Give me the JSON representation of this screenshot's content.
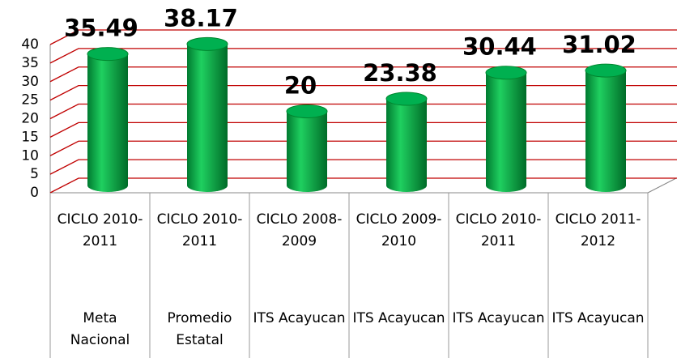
{
  "chart_data": {
    "type": "bar",
    "categories": [
      "CICLO 2010-2011",
      "CICLO 2010-2011",
      "CICLO 2008-2009",
      "CICLO 2009-2010",
      "CICLO 2010-2011",
      "CICLO 2011-2012"
    ],
    "groups": [
      "Meta Nacional",
      "Promedio Estatal",
      "ITS Acayucan",
      "ITS Acayucan",
      "ITS Acayucan",
      "ITS Acayucan"
    ],
    "values": [
      35.49,
      38.17,
      20,
      23.38,
      30.44,
      31.02
    ],
    "color": "#00b050",
    "ylim": [
      0,
      40
    ],
    "yticks": [
      0,
      5,
      10,
      15,
      20,
      25,
      30,
      35,
      40
    ],
    "grid": true,
    "grid_color": "#c00000"
  }
}
